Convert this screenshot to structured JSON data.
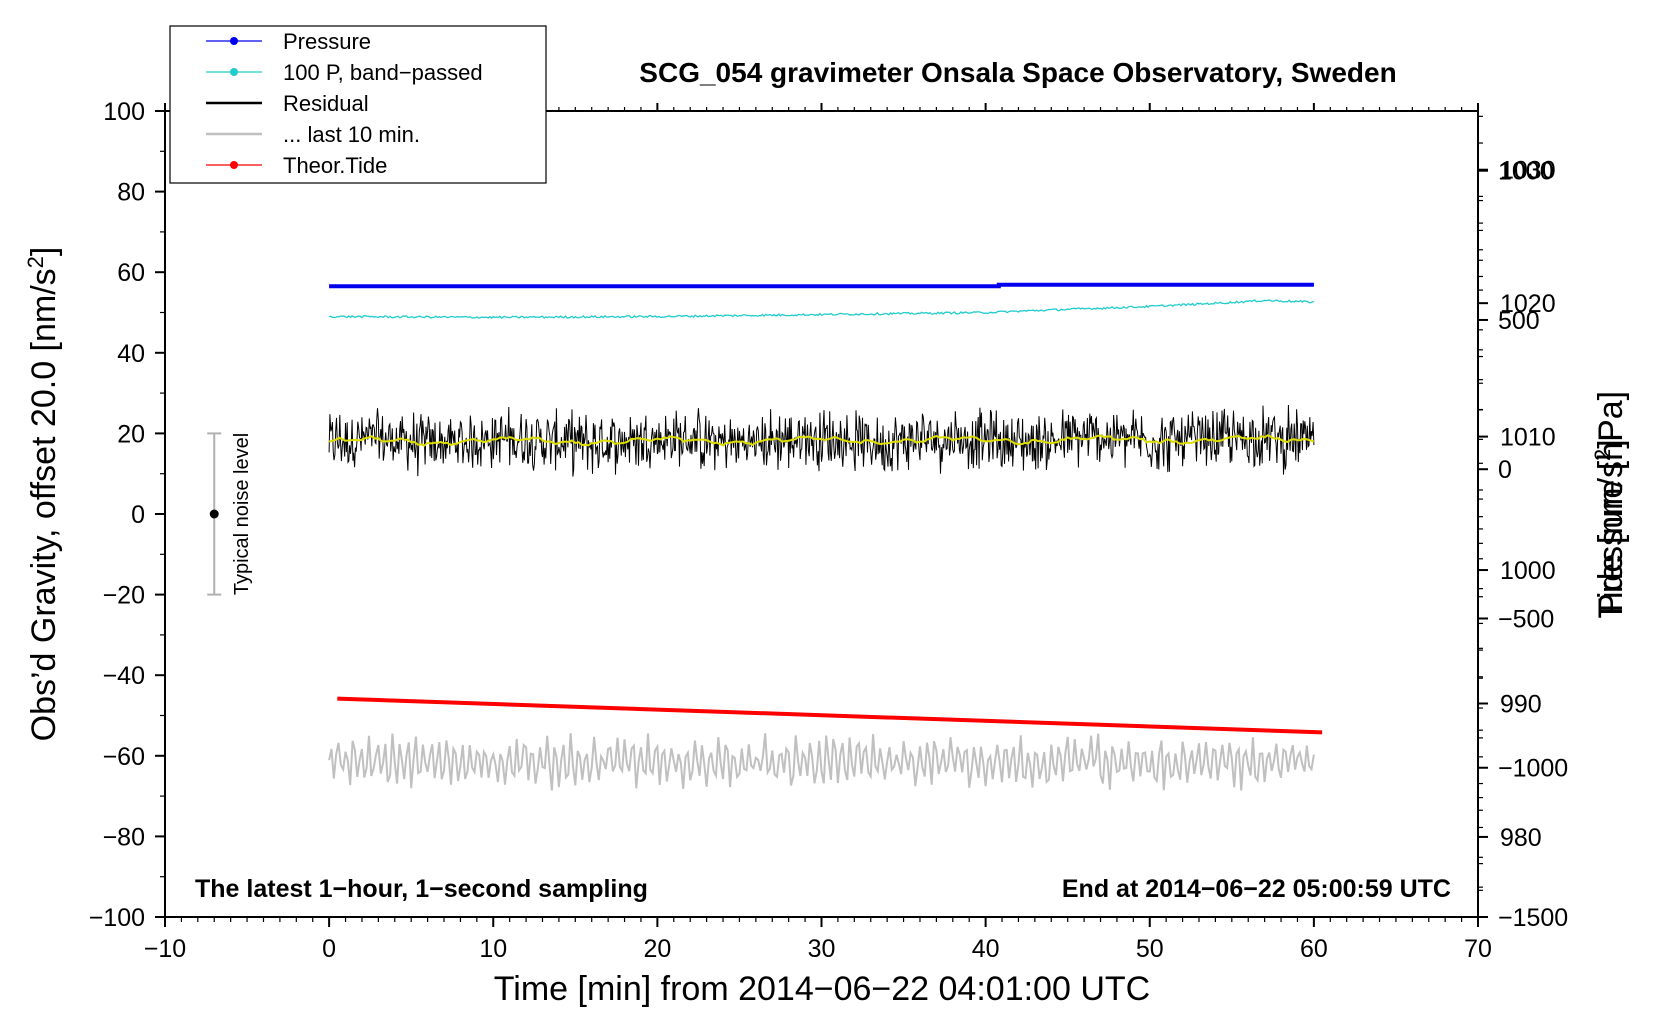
{
  "chart_data": {
    "type": "line",
    "title": "SCG_054 gravimeter Onsala Space Observatory, Sweden",
    "xlabel": "Time [min] from 2014−06−22 04:01:00 UTC",
    "ylabel_left_text": "Obs’d Gravity, offset 20.0 [nm/s",
    "ylabel_left_sup": "2",
    "ylabel_left_close": "]",
    "ylabel_right_pressure": "Pressure [hPa]",
    "ylabel_right_tide_text": "Tide [nm/s",
    "ylabel_right_tide_sup": "2",
    "ylabel_right_tide_close": "]",
    "xlim": [
      -10,
      70
    ],
    "ylim_left": [
      -100,
      100
    ],
    "x_ticks": [
      {
        "value": -10,
        "label": "−10"
      },
      {
        "value": 0,
        "label": "0"
      },
      {
        "value": 10,
        "label": "10"
      },
      {
        "value": 20,
        "label": "20"
      },
      {
        "value": 30,
        "label": "30"
      },
      {
        "value": 40,
        "label": "40"
      },
      {
        "value": 50,
        "label": "50"
      },
      {
        "value": 60,
        "label": "60"
      },
      {
        "value": 70,
        "label": "70"
      }
    ],
    "y_left_ticks": [
      {
        "value": 100,
        "label": "100"
      },
      {
        "value": 80,
        "label": "80"
      },
      {
        "value": 60,
        "label": "60"
      },
      {
        "value": 40,
        "label": "40"
      },
      {
        "value": 20,
        "label": "20"
      },
      {
        "value": 0,
        "label": "0"
      },
      {
        "value": -20,
        "label": "−20"
      },
      {
        "value": -40,
        "label": "−40"
      },
      {
        "value": -60,
        "label": "−60"
      },
      {
        "value": -80,
        "label": "−80"
      },
      {
        "value": -100,
        "label": "−100"
      }
    ],
    "pressure_axis": {
      "range": [
        974.0,
        1034.4
      ],
      "ticks": [
        {
          "value": 1030,
          "label": "1030"
        },
        {
          "value": 1020,
          "label": "1020"
        },
        {
          "value": 1010,
          "label": "1010"
        },
        {
          "value": 1000,
          "label": "1000"
        },
        {
          "value": 990,
          "label": "990"
        },
        {
          "value": 980,
          "label": "980"
        }
      ]
    },
    "tide_axis": {
      "range": [
        -1500,
        1200
      ],
      "ticks": [
        {
          "value": 1000,
          "label": "1000"
        },
        {
          "value": 500,
          "label": "500"
        },
        {
          "value": 0,
          "label": "0"
        },
        {
          "value": -500,
          "label": "−500"
        },
        {
          "value": -1000,
          "label": "−1000"
        },
        {
          "value": -1500,
          "label": "−1500"
        }
      ]
    },
    "series": [
      {
        "name": "Pressure",
        "color": "#0000ee",
        "axis": "left",
        "x": [
          0,
          40.8,
          40.8,
          60
        ],
        "y": [
          56.5,
          56.5,
          56.9,
          56.9
        ]
      },
      {
        "name": "100 P, band−passed",
        "color": "#22cccc",
        "axis": "left",
        "x": [
          0,
          10,
          20,
          30,
          40,
          45,
          50,
          55,
          57,
          60
        ],
        "y": [
          49.0,
          48.8,
          49.0,
          49.5,
          50.0,
          50.8,
          51.5,
          52.5,
          53.0,
          52.6
        ]
      },
      {
        "name": "Residual",
        "color": "#000000",
        "axis": "left",
        "x": [
          0,
          60
        ],
        "y": [
          18.0,
          18.5
        ],
        "noise_amplitude": 6
      },
      {
        "name": "... last 10 min.",
        "color": "#c0c0c0",
        "axis": "left",
        "x": [
          0,
          60
        ],
        "y": [
          -61.5,
          -61.5
        ],
        "oscillation_amplitude": 6
      },
      {
        "name": "Theor.Tide",
        "color": "#ff0000",
        "axis": "left",
        "x": [
          0.5,
          60.5
        ],
        "y": [
          -45.8,
          -54.2
        ]
      }
    ],
    "smoothed_residual_color": "#dddd00",
    "noise_marker": {
      "label": "Typical noise level",
      "x": -7,
      "y": 0,
      "range": [
        -20,
        20
      ]
    },
    "notes": {
      "left": "The latest 1−hour, 1−second sampling",
      "right": "End at 2014−06−22 05:00:59 UTC"
    },
    "legend_position": "top-left"
  }
}
